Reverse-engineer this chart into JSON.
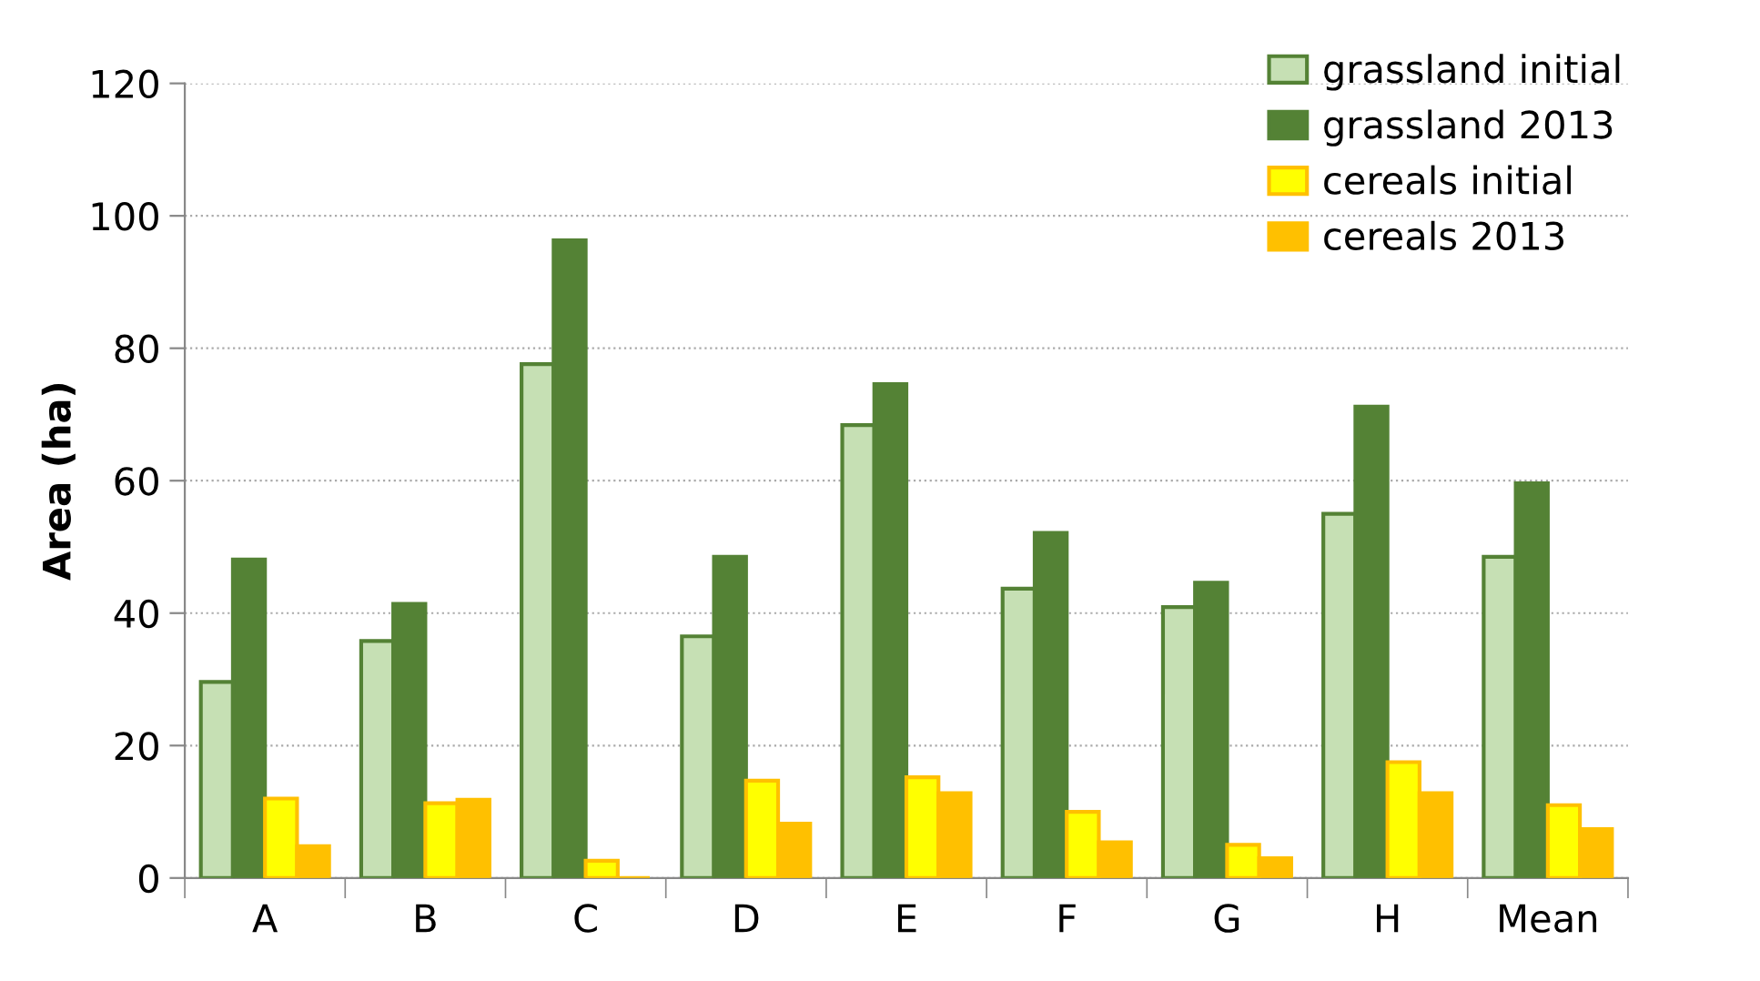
{
  "chart_data": {
    "type": "bar",
    "ylabel": "Area (ha)",
    "categories": [
      "A",
      "B",
      "C",
      "D",
      "E",
      "F",
      "G",
      "H",
      "Mean"
    ],
    "series": [
      {
        "name": "grassland initial",
        "color": "#c6e0b4",
        "values": [
          29.6,
          35.8,
          77.6,
          36.5,
          68.4,
          43.7,
          40.9,
          55.0,
          48.5
        ]
      },
      {
        "name": "grassland 2013",
        "color": "#548235",
        "values": [
          48.1,
          41.4,
          96.3,
          48.5,
          74.6,
          52.1,
          44.6,
          71.2,
          59.6
        ]
      },
      {
        "name": "cereals initial",
        "color": "#ffff00",
        "values": [
          12.0,
          11.3,
          2.6,
          14.7,
          15.2,
          10.0,
          5.0,
          17.5,
          11.0
        ]
      },
      {
        "name": "cereals 2013",
        "color": "#ffc000",
        "values": [
          4.8,
          11.8,
          0,
          8.2,
          12.8,
          5.4,
          3.0,
          12.8,
          7.4
        ]
      }
    ],
    "ylim": [
      0,
      120
    ],
    "yticks": [
      0,
      20,
      40,
      60,
      80,
      100,
      120
    ],
    "grid": "y",
    "legend": "top right"
  }
}
